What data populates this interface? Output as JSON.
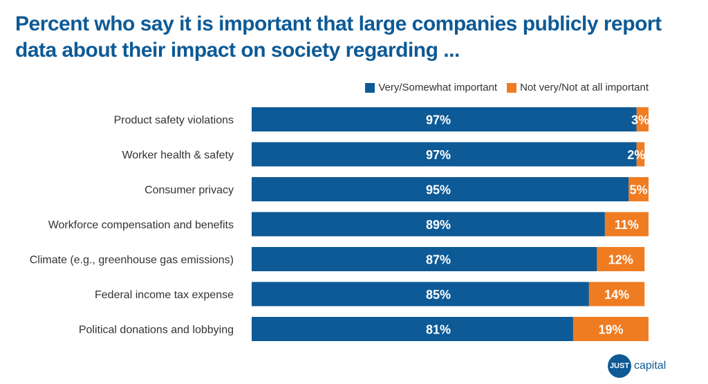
{
  "title_line1": "Percent who say it is important that large companies publicly report",
  "title_line2": "data about their impact on society regarding ...",
  "colors": {
    "title": "#0d5a96",
    "important": "#0d5a96",
    "not_important": "#f07c22"
  },
  "chart_data": {
    "type": "bar",
    "orientation": "horizontal",
    "stacked": true,
    "categories": [
      "Product safety violations",
      "Worker health & safety",
      "Consumer privacy",
      "Workforce compensation and benefits",
      "Climate (e.g., greenhouse gas emissions)",
      "Federal income tax expense",
      "Political donations and lobbying"
    ],
    "series": [
      {
        "name": "Very/Somewhat important",
        "values": [
          97,
          97,
          95,
          89,
          87,
          85,
          81
        ],
        "labels": [
          "97%",
          "97%",
          "95%",
          "89%",
          "87%",
          "85%",
          "81%"
        ]
      },
      {
        "name": "Not very/Not at all important",
        "values": [
          3,
          2,
          5,
          11,
          12,
          14,
          19
        ],
        "labels": [
          "3%",
          "2%",
          "5%",
          "11%",
          "12%",
          "14%",
          "19%"
        ]
      }
    ],
    "xlim": [
      0,
      100
    ],
    "legend_position": "top-right",
    "grid": false
  },
  "logo": {
    "mark": "JUST",
    "text": "capital"
  }
}
